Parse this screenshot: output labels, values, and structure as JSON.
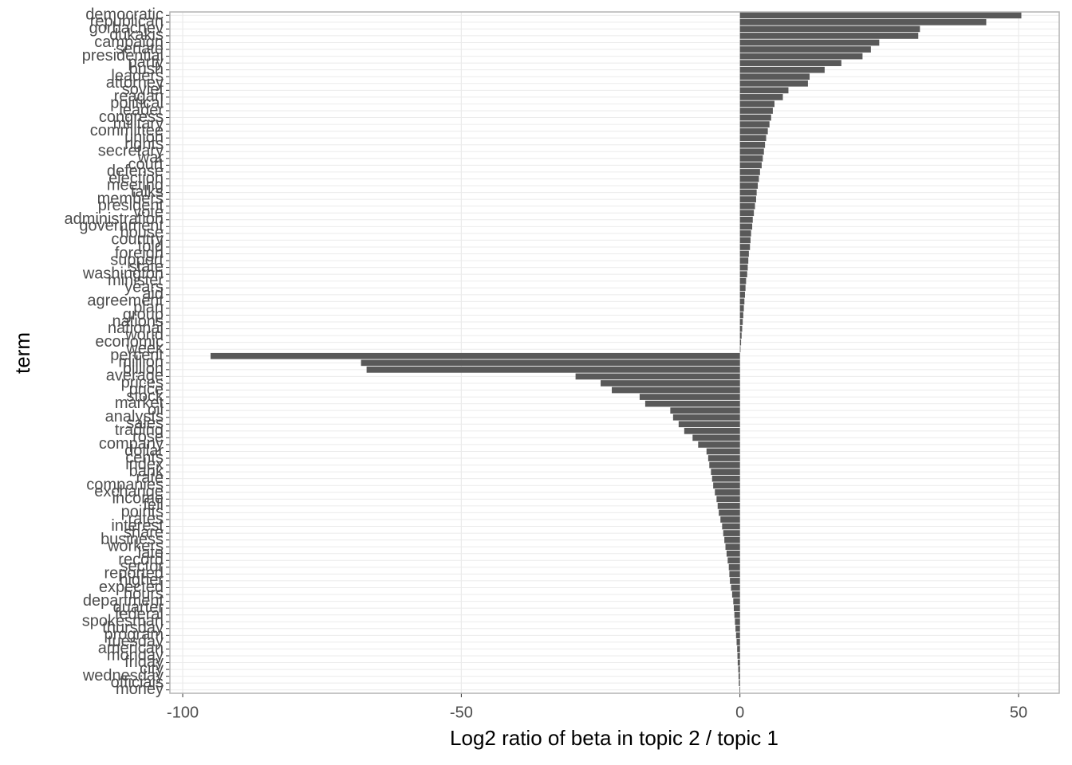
{
  "chart_data": {
    "type": "bar",
    "orientation": "horizontal",
    "xlabel": "Log2 ratio of beta in topic 2 / topic 1",
    "ylabel": "term",
    "categories": [
      "democratic",
      "republican",
      "gorbachev",
      "dukakis",
      "campaign",
      "senate",
      "presidential",
      "party",
      "bush",
      "leaders",
      "attorney",
      "soviet",
      "reagan",
      "political",
      "leader",
      "congress",
      "military",
      "committee",
      "union",
      "rights",
      "secretary",
      "war",
      "court",
      "defense",
      "election",
      "meeting",
      "talks",
      "members",
      "president",
      "vote",
      "administration",
      "government",
      "house",
      "country",
      "told",
      "foreign",
      "support",
      "state",
      "washington",
      "minister",
      "years",
      "aid",
      "agreement",
      "plan",
      "group",
      "nations",
      "national",
      "world",
      "economic",
      "week",
      "percent",
      "million",
      "billion",
      "average",
      "prices",
      "price",
      "stock",
      "market",
      "oil",
      "analysts",
      "sales",
      "trading",
      "rose",
      "company",
      "dollar",
      "cents",
      "index",
      "bank",
      "rate",
      "companies",
      "exchange",
      "income",
      "fell",
      "points",
      "rates",
      "interest",
      "share",
      "business",
      "workers",
      "late",
      "record",
      "sector",
      "reported",
      "higher",
      "expected",
      "hours",
      "department",
      "quarter",
      "federal",
      "spokesman",
      "thursday",
      "program",
      "tuesday",
      "american",
      "monday",
      "friday",
      "city",
      "wednesday",
      "officials",
      "money"
    ],
    "values": [
      50.5,
      44.2,
      32.3,
      32,
      25,
      23.5,
      22,
      18.2,
      15.2,
      12.5,
      12.2,
      8.7,
      7.7,
      6.2,
      5.9,
      5.6,
      5.3,
      5,
      4.7,
      4.5,
      4.3,
      4.1,
      3.9,
      3.6,
      3.4,
      3.2,
      3,
      2.9,
      2.7,
      2.5,
      2.3,
      2.2,
      2,
      1.9,
      1.8,
      1.6,
      1.5,
      1.4,
      1.3,
      1.1,
      1,
      0.9,
      0.8,
      0.7,
      0.6,
      0.5,
      0.4,
      0.3,
      0.2,
      0.1,
      -95,
      -68,
      -67,
      -29.5,
      -25,
      -23,
      -18,
      -17,
      -12.5,
      -12,
      -11,
      -10,
      -8.5,
      -7.5,
      -6,
      -5.7,
      -5.5,
      -5.2,
      -5,
      -4.8,
      -4.5,
      -4.2,
      -4,
      -3.8,
      -3.5,
      -3.2,
      -3,
      -2.8,
      -2.6,
      -2.4,
      -2.2,
      -2,
      -1.9,
      -1.8,
      -1.6,
      -1.4,
      -1.2,
      -1.1,
      -1,
      -0.9,
      -0.8,
      -0.7,
      -0.6,
      -0.5,
      -0.45,
      -0.4,
      -0.3,
      -0.25,
      -0.2,
      -0.1
    ],
    "color": "#595959",
    "xlim": [
      -102.3,
      57.3
    ],
    "xticks": [
      -100,
      -50,
      0,
      50
    ],
    "grid": true
  }
}
